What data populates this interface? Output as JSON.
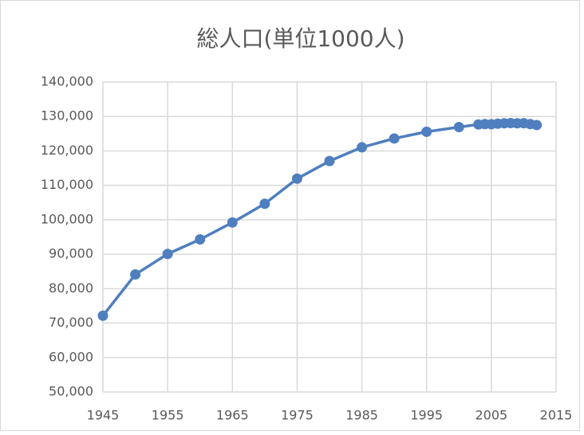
{
  "chart_data": {
    "type": "line",
    "title": "総人口(単位1000人)",
    "x": [
      1945,
      1950,
      1955,
      1960,
      1965,
      1970,
      1975,
      1980,
      1985,
      1990,
      1995,
      2000,
      2003,
      2004,
      2005,
      2006,
      2007,
      2008,
      2009,
      2010,
      2011,
      2012
    ],
    "series": [
      {
        "name": "総人口",
        "color": "#4f7fbe",
        "values": [
          72147,
          84115,
          90077,
          94302,
          99209,
          104665,
          111940,
          117060,
          121049,
          123611,
          125570,
          126926,
          127694,
          127787,
          127768,
          127901,
          128033,
          128084,
          128032,
          128057,
          127799,
          127515
        ]
      }
    ],
    "xlim": [
      1945,
      2015
    ],
    "xticks": [
      1945,
      1955,
      1965,
      1975,
      1985,
      1995,
      2005,
      2015
    ],
    "ylim": [
      50000,
      140000
    ],
    "yticks": [
      {
        "value": 50000,
        "label": "50,000"
      },
      {
        "value": 60000,
        "label": "60,000"
      },
      {
        "value": 70000,
        "label": "70,000"
      },
      {
        "value": 80000,
        "label": "80,000"
      },
      {
        "value": 90000,
        "label": "90,000"
      },
      {
        "value": 100000,
        "label": "100,000"
      },
      {
        "value": 110000,
        "label": "110,000"
      },
      {
        "value": 120000,
        "label": "120,000"
      },
      {
        "value": 130000,
        "label": "130,000"
      },
      {
        "value": 140000,
        "label": "140,000"
      }
    ],
    "grid": true
  }
}
